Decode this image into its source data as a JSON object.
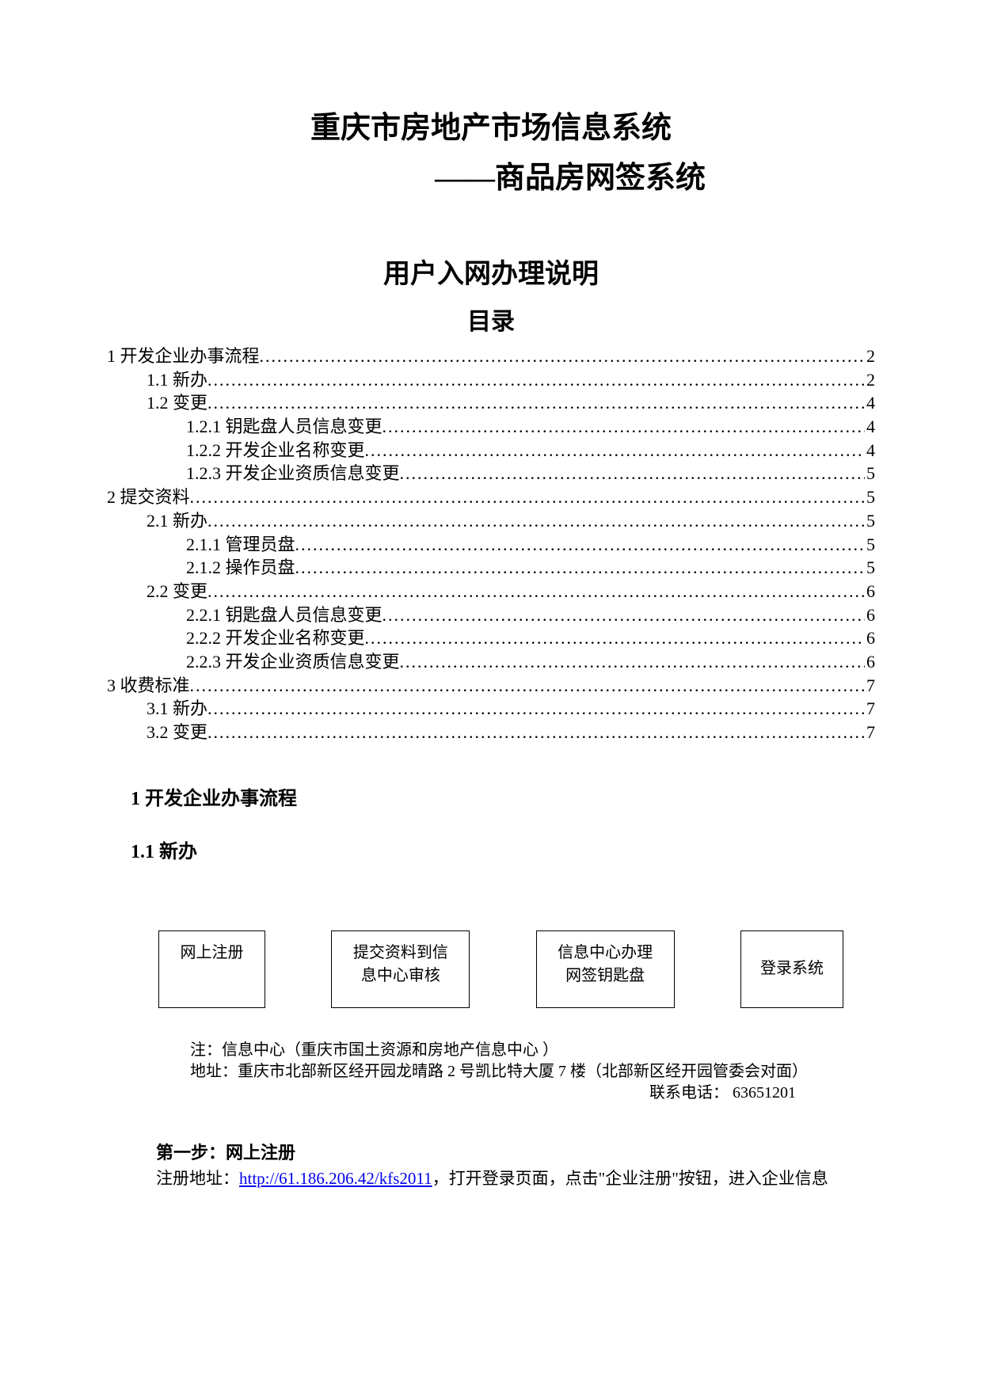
{
  "title": {
    "main": "重庆市房地产市场信息系统",
    "sub": "——商品房网签系统",
    "section": "用户入网办理说明",
    "toc": "目录"
  },
  "toc": [
    {
      "indent": 0,
      "label": "1 开发企业办事流程",
      "page": "2"
    },
    {
      "indent": 1,
      "label": "1.1 新办",
      "page": "2"
    },
    {
      "indent": 1,
      "label": "1.2 变更",
      "page": "4"
    },
    {
      "indent": 2,
      "label": "1.2.1 钥匙盘人员信息变更",
      "page": "4"
    },
    {
      "indent": 2,
      "label": "1.2.2 开发企业名称变更",
      "page": "4"
    },
    {
      "indent": 2,
      "label": "1.2.3 开发企业资质信息变更",
      "page": "5"
    },
    {
      "indent": 0,
      "label": "2 提交资料",
      "page": "5"
    },
    {
      "indent": 1,
      "label": "2.1 新办",
      "page": "5"
    },
    {
      "indent": 2,
      "label": "2.1.1 管理员盘",
      "page": "5"
    },
    {
      "indent": 2,
      "label": "2.1.2 操作员盘",
      "page": "5"
    },
    {
      "indent": 1,
      "label": "2.2 变更",
      "page": "6"
    },
    {
      "indent": 2,
      "label": "2.2.1 钥匙盘人员信息变更",
      "page": "6"
    },
    {
      "indent": 2,
      "label": "2.2.2 开发企业名称变更",
      "page": "6"
    },
    {
      "indent": 2,
      "label": "2.2.3 开发企业资质信息变更",
      "page": "6"
    },
    {
      "indent": 0,
      "label": "3 收费标准",
      "page": "7"
    },
    {
      "indent": 1,
      "label": "3.1 新办",
      "page": "7"
    },
    {
      "indent": 1,
      "label": "3.2 变更",
      "page": "7"
    }
  ],
  "headings": {
    "h1": "1 开发企业办事流程",
    "h2": "1.1 新办"
  },
  "flow": {
    "box1": "网上注册",
    "box2a": "提交资料到信",
    "box2b": "息中心审核",
    "box3a": "信息中心办理",
    "box3b": "网签钥匙盘",
    "box4": "登录系统"
  },
  "note": {
    "line1": "注：信息中心（重庆市国土资源和房地产信息中心 ）",
    "line2": "地址：重庆市北部新区经开园龙晴路 2 号凯比特大厦 7 楼（北部新区经开园管委会对面）",
    "phone": "联系电话： 63651201"
  },
  "step": {
    "heading": "第一步：网上注册",
    "prefix": "注册地址：",
    "url": "http://61.186.206.42/kfs2011",
    "suffix": "，打开登录页面，点击\"企业注册\"按钮，进入企业信息"
  },
  "colors": {
    "text": "#000000",
    "background": "#ffffff",
    "link": "#0000ee"
  }
}
